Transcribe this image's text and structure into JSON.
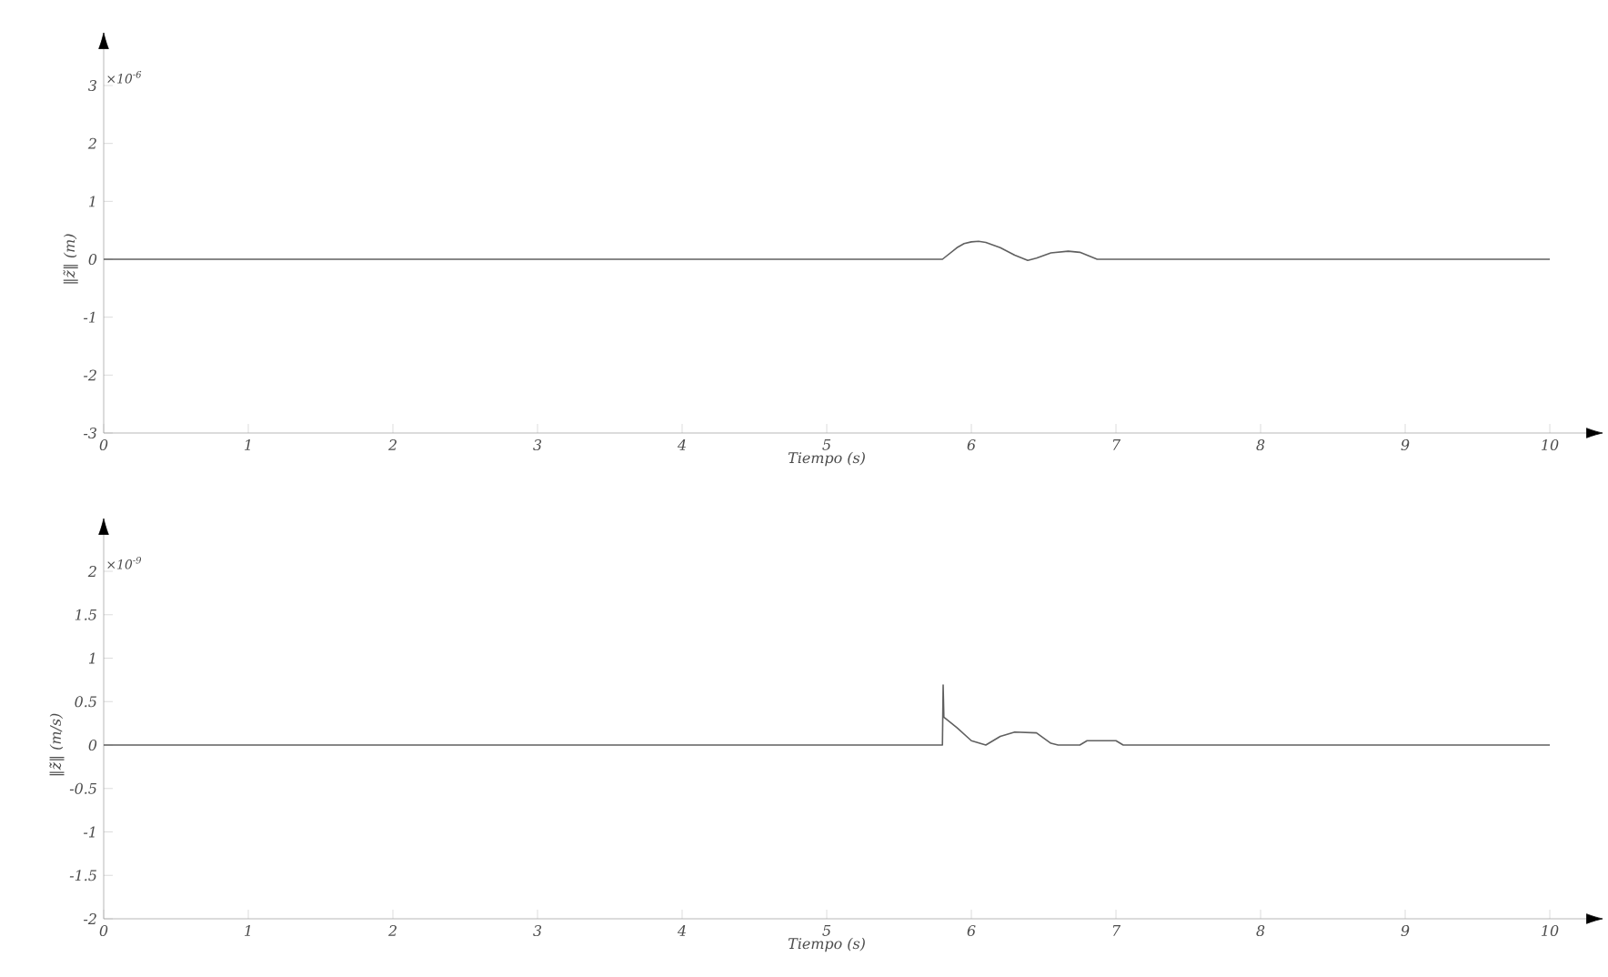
{
  "chart_data": [
    {
      "type": "line",
      "xlabel": "Tiempo (s)",
      "ylabel": "‖z̃‖ (m)",
      "annotations": [
        "×10$^{-6}$"
      ],
      "xlim": [
        0,
        10
      ],
      "ylim": [
        -3,
        3
      ],
      "xticks": [
        0,
        1,
        2,
        3,
        4,
        5,
        6,
        7,
        8,
        9,
        10
      ],
      "yticks": [
        -3,
        -2,
        -1,
        0,
        1,
        2,
        3
      ],
      "series": [
        {
          "color": "#606060",
          "x": [
            0,
            5.8,
            5.85,
            5.9,
            5.95,
            6.0,
            6.05,
            6.1,
            6.2,
            6.3,
            6.39,
            6.45,
            6.55,
            6.67,
            6.75,
            6.87,
            10
          ],
          "values": [
            0,
            0,
            0.1,
            0.2,
            0.27,
            0.3,
            0.31,
            0.29,
            0.2,
            0.07,
            -0.02,
            0.02,
            0.11,
            0.14,
            0.12,
            0,
            0
          ]
        }
      ]
    },
    {
      "type": "line",
      "xlabel": "Tiempo (s)",
      "ylabel": "‖ż̃‖ (m/s)",
      "annotations": [
        "×10$^{-9}$"
      ],
      "xlim": [
        0,
        10
      ],
      "ylim": [
        -2,
        2
      ],
      "xticks": [
        0,
        1,
        2,
        3,
        4,
        5,
        6,
        7,
        8,
        9,
        10
      ],
      "yticks": [
        -2,
        -1.5,
        -1,
        -0.5,
        0,
        0.5,
        1,
        1.5,
        2
      ],
      "series": [
        {
          "color": "#606060",
          "x": [
            0,
            5.8,
            5.805,
            5.81,
            5.9,
            6.0,
            6.1,
            6.2,
            6.3,
            6.45,
            6.55,
            6.6,
            6.75,
            6.8,
            7.0,
            7.05,
            10
          ],
          "values": [
            0,
            0,
            0.69,
            0.32,
            0.2,
            0.05,
            0.0,
            0.1,
            0.15,
            0.14,
            0.02,
            0,
            0,
            0.05,
            0.05,
            0,
            0
          ]
        }
      ]
    }
  ]
}
